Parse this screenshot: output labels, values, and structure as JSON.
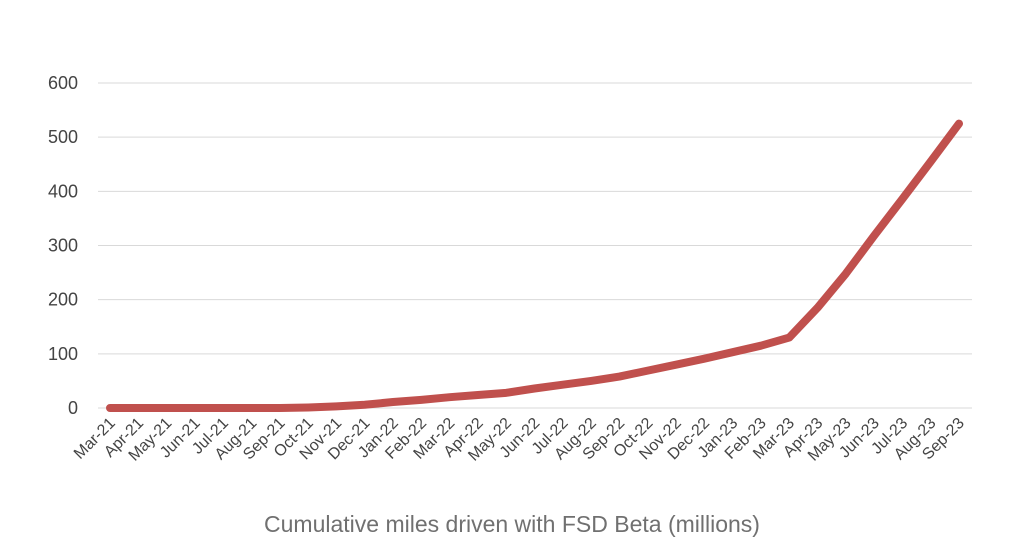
{
  "chart_data": {
    "type": "line",
    "title": "Cumulative miles driven with FSD Beta (millions)",
    "xlabel": "",
    "ylabel": "",
    "ylim": [
      0,
      600
    ],
    "yticks": [
      0,
      100,
      200,
      300,
      400,
      500,
      600
    ],
    "grid": true,
    "categories": [
      "Mar-21",
      "Apr-21",
      "May-21",
      "Jun-21",
      "Jul-21",
      "Aug-21",
      "Sep-21",
      "Oct-21",
      "Nov-21",
      "Dec-21",
      "Jan-22",
      "Feb-22",
      "Mar-22",
      "Apr-22",
      "May-22",
      "Jun-22",
      "Jul-22",
      "Aug-22",
      "Sep-22",
      "Oct-22",
      "Nov-22",
      "Dec-22",
      "Jan-23",
      "Feb-23",
      "Mar-23",
      "Apr-23",
      "May-23",
      "Jun-23",
      "Jul-23",
      "Aug-23",
      "Sep-23"
    ],
    "series": [
      {
        "name": "Cumulative miles (millions)",
        "color": "#c0504d",
        "values": [
          0,
          0,
          0,
          0,
          0,
          0,
          0,
          1,
          3,
          6,
          11,
          15,
          20,
          24,
          28,
          36,
          43,
          50,
          58,
          69,
          80,
          91,
          103,
          115,
          130,
          185,
          248,
          318,
          386,
          455,
          525
        ]
      }
    ]
  }
}
